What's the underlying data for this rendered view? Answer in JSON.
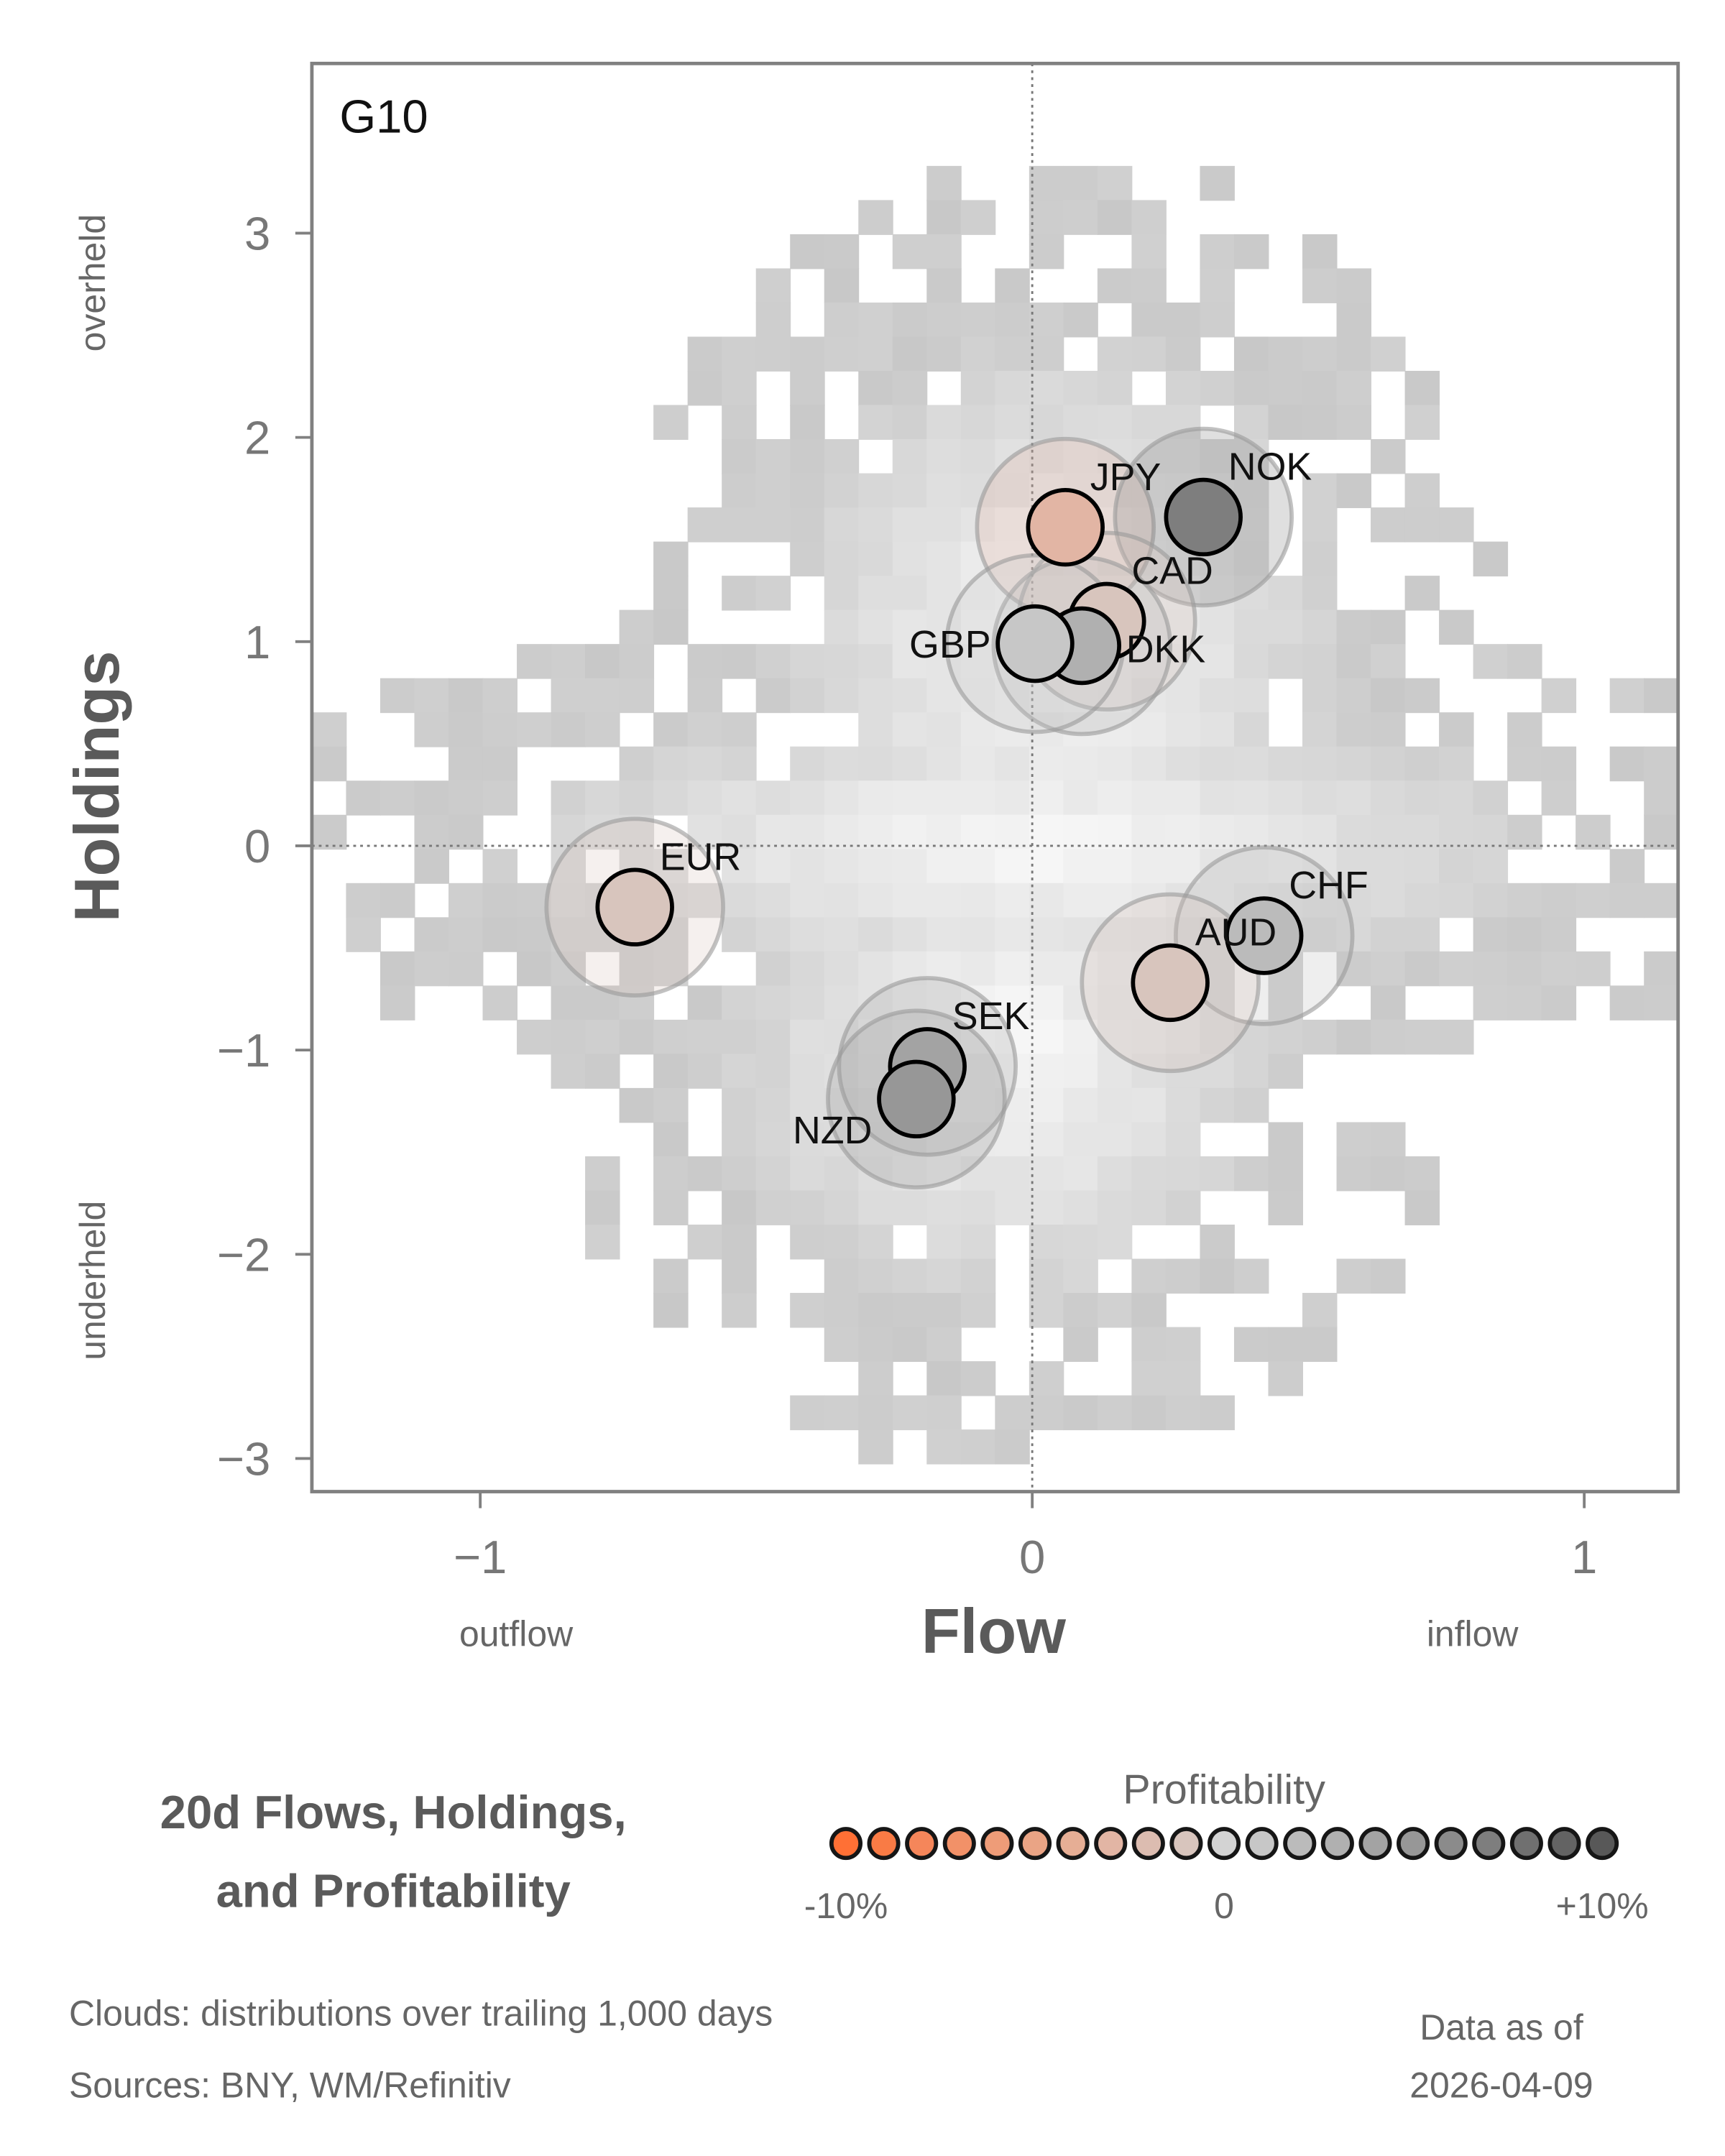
{
  "chart_data": {
    "type": "scatter",
    "panel_label": "G10",
    "xlabel": "Flow",
    "ylabel": "Holdings",
    "x_annotations": {
      "low": "outflow",
      "high": "inflow"
    },
    "y_annotations": {
      "low": "underheld",
      "high": "overheld"
    },
    "xlim": [
      -1.3,
      1.17
    ],
    "ylim": [
      -3.15,
      3.8
    ],
    "xticks": [
      {
        "v": -1,
        "label": "−1"
      },
      {
        "v": 0,
        "label": "0"
      },
      {
        "v": 1,
        "label": "1"
      }
    ],
    "yticks": [
      {
        "v": 3,
        "label": "3"
      },
      {
        "v": 2,
        "label": "2"
      },
      {
        "v": 1,
        "label": "1"
      },
      {
        "v": 0,
        "label": "0"
      },
      {
        "v": -1,
        "label": "−1"
      },
      {
        "v": -2,
        "label": "−2"
      },
      {
        "v": -3,
        "label": "−3"
      }
    ],
    "reference_lines": {
      "x": 0,
      "y": 0,
      "style": "dotted"
    },
    "background": "density clouds (grey heatmap)",
    "points": [
      {
        "name": "JPY",
        "x": 0.06,
        "y": 1.56,
        "profitability": -3.5
      },
      {
        "name": "NOK",
        "x": 0.31,
        "y": 1.61,
        "profitability": 6.5
      },
      {
        "name": "CAD",
        "x": 0.135,
        "y": 1.1,
        "profitability": -1.5
      },
      {
        "name": "DKK",
        "x": 0.09,
        "y": 0.98,
        "profitability": 2.5
      },
      {
        "name": "GBP",
        "x": 0.005,
        "y": 0.99,
        "profitability": 1.0
      },
      {
        "name": "EUR",
        "x": -0.72,
        "y": -0.3,
        "profitability": -1.0
      },
      {
        "name": "CHF",
        "x": 0.42,
        "y": -0.44,
        "profitability": 1.5
      },
      {
        "name": "AUD",
        "x": 0.25,
        "y": -0.67,
        "profitability": -1.0
      },
      {
        "name": "SEK",
        "x": -0.19,
        "y": -1.08,
        "profitability": 3.5
      },
      {
        "name": "NZD",
        "x": -0.21,
        "y": -1.24,
        "profitability": 4.5
      }
    ],
    "legend": {
      "title": "Profitability",
      "min_label": "-10%",
      "mid_label": "0",
      "max_label": "+10%",
      "range": [
        -10,
        10
      ],
      "colors": [
        "#ff7035",
        "#f97b45",
        "#f5865a",
        "#f29168",
        "#ee9c78",
        "#eaa485",
        "#e6ae95",
        "#e2b5a4",
        "#dcbcb0",
        "#d8c5bd",
        "#d3d3d3",
        "#c7c7c7",
        "#bbbbbb",
        "#b0b0b0",
        "#a3a3a3",
        "#979797",
        "#8b8b8b",
        "#7e7e7e",
        "#707070",
        "#636363",
        "#585858"
      ]
    }
  },
  "title": "20d Flows, Holdings, and Profitability",
  "title_lines": [
    "20d Flows, Holdings,",
    "and Profitability"
  ],
  "footnotes": [
    "Clouds:  distributions over trailing 1,000 days",
    "Sources:  BNY, WM/Refinitiv"
  ],
  "data_as_of": {
    "label": "Data as of",
    "date": "2026-04-09"
  }
}
